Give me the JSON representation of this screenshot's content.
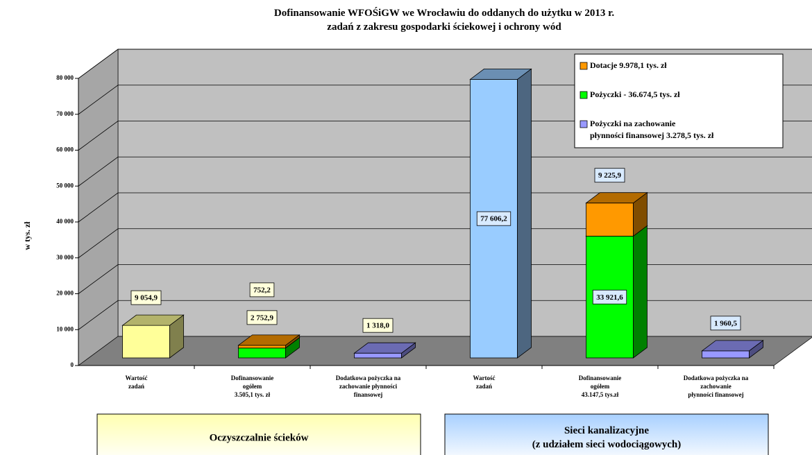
{
  "chart_data": {
    "type": "bar3d",
    "title": "Dofinansowanie WFOŚiGW we Wrocławiu do oddanych do użytku w 2013 r.\nzadań z zakresu gospodarki ściekowej i ochrony wód",
    "y_label": "w tys. zł",
    "categories": [
      "Wartość\nzadań",
      "Dofinansowanie\nogółem\n3.505,1 tys. zł",
      "Dodatkowa pożyczka na\nzachowanie płynności\nfinansowej",
      "Wartość\nzadań",
      "Dofinansowanie\nogółem\n43.147,5 tys.zł",
      "Dodatkowa pożyczka na\nzachowanie\npłynności finansowej"
    ],
    "groups": [
      {
        "label": "Oczyszczalnie ścieków",
        "color": "#ffffb0"
      },
      {
        "label": "Sieci kanalizacyjne\n(z udziałem sieci wodociągowych)",
        "color": "#a8d0ff"
      }
    ],
    "series": [
      {
        "name": "Dotacje 9.978,1 tys. zł",
        "color": "#ff9900",
        "values": [
          null,
          752.2,
          null,
          null,
          9225.9,
          null
        ],
        "value_labels": [
          null,
          "752,2",
          null,
          null,
          "9 225,9",
          null
        ]
      },
      {
        "name": "Pożyczki - 36.674,5 tys. zł",
        "color": "#00ff00",
        "values": [
          null,
          2752.9,
          null,
          null,
          33921.6,
          null
        ],
        "value_labels": [
          null,
          "2 752,9",
          null,
          null,
          "33 921,6",
          null
        ]
      },
      {
        "name": "Pożyczki na zachowanie\npłynności finansowej  3.278,5 tys. zł",
        "color": "#9999ff",
        "values": [
          null,
          null,
          1318.0,
          null,
          null,
          1960.5
        ],
        "value_labels": [
          null,
          null,
          "1 318,0",
          null,
          null,
          "1 960,5"
        ]
      },
      {
        "colors": [
          "#ffff99",
          null,
          null,
          "#99ccff",
          null,
          null
        ],
        "values": [
          9054.9,
          null,
          null,
          77606.2,
          null,
          null
        ],
        "value_labels": [
          "9 054,9",
          null,
          null,
          "77 606,2",
          null,
          null
        ]
      }
    ],
    "ylim": [
      0,
      80000
    ],
    "yticks": [
      0,
      {
        "value": 10000,
        "label": "10 000"
      },
      {
        "value": 20000,
        "label": "20 000"
      },
      {
        "value": 30000,
        "label": "30 000"
      },
      {
        "value": 40000,
        "label": "40 000"
      },
      {
        "value": 50000,
        "label": "50 000"
      },
      {
        "value": 60000,
        "label": "60 000"
      },
      {
        "value": 70000,
        "label": "70 000"
      },
      {
        "value": 80000,
        "label": "80 000"
      }
    ],
    "grid": true,
    "legend": "top-right"
  }
}
